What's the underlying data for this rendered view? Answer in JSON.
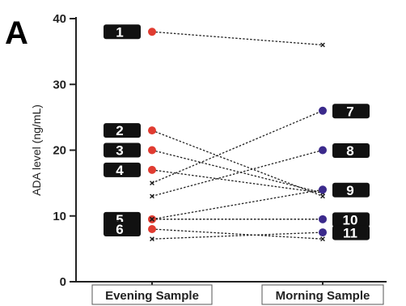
{
  "panel_label": "A",
  "chart_data": {
    "type": "line",
    "title": "",
    "xlabel": "",
    "ylabel": "ADA level (ng/mL)",
    "ylim": [
      0,
      40
    ],
    "yticks": [
      0,
      10,
      20,
      30,
      40
    ],
    "categories": [
      "Evening Sample",
      "Morning Sample"
    ],
    "series": [
      {
        "label": "1",
        "values": [
          38,
          36
        ]
      },
      {
        "label": "2",
        "values": [
          23,
          13
        ]
      },
      {
        "label": "3",
        "values": [
          20,
          13.5
        ]
      },
      {
        "label": "4",
        "values": [
          17,
          13.5
        ]
      },
      {
        "label": "5",
        "values": [
          9.5,
          9.5
        ]
      },
      {
        "label": "6",
        "values": [
          8,
          6.5
        ]
      },
      {
        "label": "7",
        "values": [
          15,
          26
        ]
      },
      {
        "label": "8",
        "values": [
          13,
          20
        ]
      },
      {
        "label": "9",
        "values": [
          9.5,
          14
        ]
      },
      {
        "label": "10",
        "values": [
          9.5,
          9.5
        ]
      },
      {
        "label": "11",
        "values": [
          6.5,
          7.5
        ]
      }
    ],
    "marker_colors": {
      "high_end": "#e03c31",
      "high_end_morning": "#3b2a8c",
      "low_end": "#1a1a1a"
    },
    "line_style": "dotted",
    "grid": false,
    "legend": "none"
  }
}
